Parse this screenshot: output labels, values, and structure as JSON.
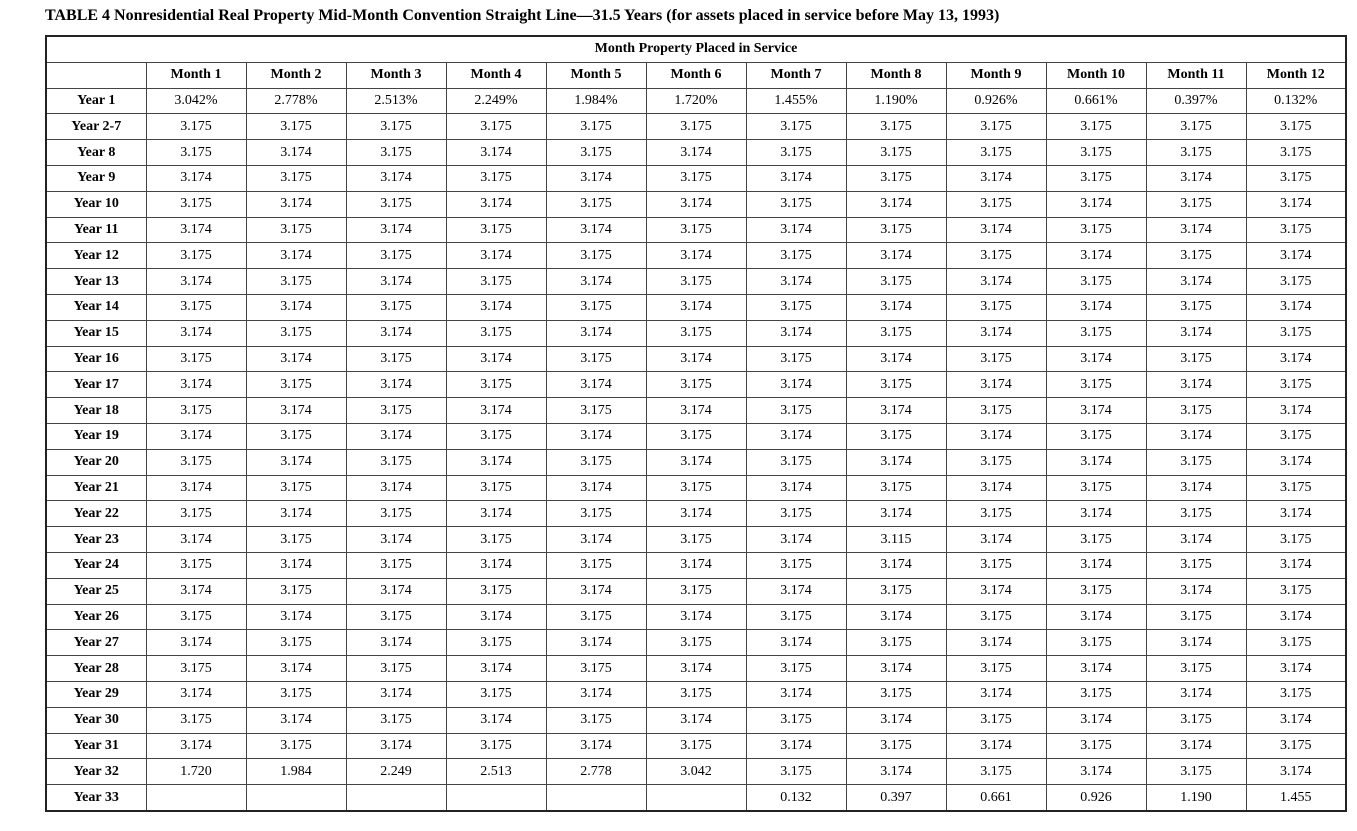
{
  "title": "TABLE 4 Nonresidential Real Property Mid-Month Convention Straight Line—31.5 Years (for assets placed in service before May 13, 1993)",
  "table": {
    "span_header": "Month Property Placed in Service",
    "columns": [
      "Month 1",
      "Month 2",
      "Month 3",
      "Month 4",
      "Month 5",
      "Month 6",
      "Month 7",
      "Month 8",
      "Month 9",
      "Month 10",
      "Month 11",
      "Month 12"
    ],
    "rows": [
      {
        "label": "Year 1",
        "values": [
          "3.042%",
          "2.778%",
          "2.513%",
          "2.249%",
          "1.984%",
          "1.720%",
          "1.455%",
          "1.190%",
          "0.926%",
          "0.661%",
          "0.397%",
          "0.132%"
        ]
      },
      {
        "label": "Year 2-7",
        "values": [
          "3.175",
          "3.175",
          "3.175",
          "3.175",
          "3.175",
          "3.175",
          "3.175",
          "3.175",
          "3.175",
          "3.175",
          "3.175",
          "3.175"
        ]
      },
      {
        "label": "Year 8",
        "values": [
          "3.175",
          "3.174",
          "3.175",
          "3.174",
          "3.175",
          "3.174",
          "3.175",
          "3.175",
          "3.175",
          "3.175",
          "3.175",
          "3.175"
        ]
      },
      {
        "label": "Year 9",
        "values": [
          "3.174",
          "3.175",
          "3.174",
          "3.175",
          "3.174",
          "3.175",
          "3.174",
          "3.175",
          "3.174",
          "3.175",
          "3.174",
          "3.175"
        ]
      },
      {
        "label": "Year 10",
        "values": [
          "3.175",
          "3.174",
          "3.175",
          "3.174",
          "3.175",
          "3.174",
          "3.175",
          "3.174",
          "3.175",
          "3.174",
          "3.175",
          "3.174"
        ]
      },
      {
        "label": "Year 11",
        "values": [
          "3.174",
          "3.175",
          "3.174",
          "3.175",
          "3.174",
          "3.175",
          "3.174",
          "3.175",
          "3.174",
          "3.175",
          "3.174",
          "3.175"
        ]
      },
      {
        "label": "Year 12",
        "values": [
          "3.175",
          "3.174",
          "3.175",
          "3.174",
          "3.175",
          "3.174",
          "3.175",
          "3.174",
          "3.175",
          "3.174",
          "3.175",
          "3.174"
        ]
      },
      {
        "label": "Year 13",
        "values": [
          "3.174",
          "3.175",
          "3.174",
          "3.175",
          "3.174",
          "3.175",
          "3.174",
          "3.175",
          "3.174",
          "3.175",
          "3.174",
          "3.175"
        ]
      },
      {
        "label": "Year 14",
        "values": [
          "3.175",
          "3.174",
          "3.175",
          "3.174",
          "3.175",
          "3.174",
          "3.175",
          "3.174",
          "3.175",
          "3.174",
          "3.175",
          "3.174"
        ]
      },
      {
        "label": "Year 15",
        "values": [
          "3.174",
          "3.175",
          "3.174",
          "3.175",
          "3.174",
          "3.175",
          "3.174",
          "3.175",
          "3.174",
          "3.175",
          "3.174",
          "3.175"
        ]
      },
      {
        "label": "Year 16",
        "values": [
          "3.175",
          "3.174",
          "3.175",
          "3.174",
          "3.175",
          "3.174",
          "3.175",
          "3.174",
          "3.175",
          "3.174",
          "3.175",
          "3.174"
        ]
      },
      {
        "label": "Year 17",
        "values": [
          "3.174",
          "3.175",
          "3.174",
          "3.175",
          "3.174",
          "3.175",
          "3.174",
          "3.175",
          "3.174",
          "3.175",
          "3.174",
          "3.175"
        ]
      },
      {
        "label": "Year 18",
        "values": [
          "3.175",
          "3.174",
          "3.175",
          "3.174",
          "3.175",
          "3.174",
          "3.175",
          "3.174",
          "3.175",
          "3.174",
          "3.175",
          "3.174"
        ]
      },
      {
        "label": "Year 19",
        "values": [
          "3.174",
          "3.175",
          "3.174",
          "3.175",
          "3.174",
          "3.175",
          "3.174",
          "3.175",
          "3.174",
          "3.175",
          "3.174",
          "3.175"
        ]
      },
      {
        "label": "Year 20",
        "values": [
          "3.175",
          "3.174",
          "3.175",
          "3.174",
          "3.175",
          "3.174",
          "3.175",
          "3.174",
          "3.175",
          "3.174",
          "3.175",
          "3.174"
        ]
      },
      {
        "label": "Year 21",
        "values": [
          "3.174",
          "3.175",
          "3.174",
          "3.175",
          "3.174",
          "3.175",
          "3.174",
          "3.175",
          "3.174",
          "3.175",
          "3.174",
          "3.175"
        ]
      },
      {
        "label": "Year 22",
        "values": [
          "3.175",
          "3.174",
          "3.175",
          "3.174",
          "3.175",
          "3.174",
          "3.175",
          "3.174",
          "3.175",
          "3.174",
          "3.175",
          "3.174"
        ]
      },
      {
        "label": "Year 23",
        "values": [
          "3.174",
          "3.175",
          "3.174",
          "3.175",
          "3.174",
          "3.175",
          "3.174",
          "3.115",
          "3.174",
          "3.175",
          "3.174",
          "3.175"
        ]
      },
      {
        "label": "Year 24",
        "values": [
          "3.175",
          "3.174",
          "3.175",
          "3.174",
          "3.175",
          "3.174",
          "3.175",
          "3.174",
          "3.175",
          "3.174",
          "3.175",
          "3.174"
        ]
      },
      {
        "label": "Year 25",
        "values": [
          "3.174",
          "3.175",
          "3.174",
          "3.175",
          "3.174",
          "3.175",
          "3.174",
          "3.175",
          "3.174",
          "3.175",
          "3.174",
          "3.175"
        ]
      },
      {
        "label": "Year 26",
        "values": [
          "3.175",
          "3.174",
          "3.175",
          "3.174",
          "3.175",
          "3.174",
          "3.175",
          "3.174",
          "3.175",
          "3.174",
          "3.175",
          "3.174"
        ]
      },
      {
        "label": "Year 27",
        "values": [
          "3.174",
          "3.175",
          "3.174",
          "3.175",
          "3.174",
          "3.175",
          "3.174",
          "3.175",
          "3.174",
          "3.175",
          "3.174",
          "3.175"
        ]
      },
      {
        "label": "Year 28",
        "values": [
          "3.175",
          "3.174",
          "3.175",
          "3.174",
          "3.175",
          "3.174",
          "3.175",
          "3.174",
          "3.175",
          "3.174",
          "3.175",
          "3.174"
        ]
      },
      {
        "label": "Year 29",
        "values": [
          "3.174",
          "3.175",
          "3.174",
          "3.175",
          "3.174",
          "3.175",
          "3.174",
          "3.175",
          "3.174",
          "3.175",
          "3.174",
          "3.175"
        ]
      },
      {
        "label": "Year 30",
        "values": [
          "3.175",
          "3.174",
          "3.175",
          "3.174",
          "3.175",
          "3.174",
          "3.175",
          "3.174",
          "3.175",
          "3.174",
          "3.175",
          "3.174"
        ]
      },
      {
        "label": "Year 31",
        "values": [
          "3.174",
          "3.175",
          "3.174",
          "3.175",
          "3.174",
          "3.175",
          "3.174",
          "3.175",
          "3.174",
          "3.175",
          "3.174",
          "3.175"
        ]
      },
      {
        "label": "Year 32",
        "values": [
          "1.720",
          "1.984",
          "2.249",
          "2.513",
          "2.778",
          "3.042",
          "3.175",
          "3.174",
          "3.175",
          "3.174",
          "3.175",
          "3.174"
        ]
      },
      {
        "label": "Year 33",
        "values": [
          "",
          "",
          "",
          "",
          "",
          "",
          "0.132",
          "0.397",
          "0.661",
          "0.926",
          "1.190",
          "1.455"
        ]
      }
    ]
  }
}
